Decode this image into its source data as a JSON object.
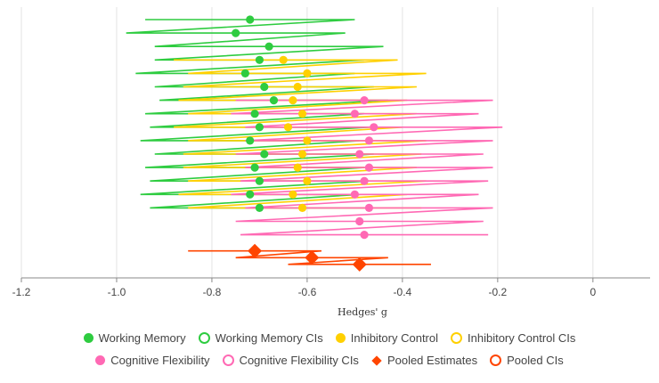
{
  "chart_data": {
    "type": "scatter",
    "xlabel": "Hedges' g",
    "xlim": [
      -1.2,
      0.12
    ],
    "xticks": [
      -1.2,
      -1.0,
      -0.8,
      -0.6,
      -0.4,
      -0.2,
      0
    ],
    "xtick_labels": [
      "-1.2",
      "-1.0",
      "-0.8",
      "-0.6",
      "-0.4",
      "-0.2",
      "0"
    ],
    "grid": true,
    "legend_position": "bottom",
    "series": [
      {
        "name": "Working Memory",
        "ci_name": "Working Memory CIs",
        "color": "#2ecc40",
        "marker": "circle",
        "points": [
          {
            "row": 1,
            "g": -0.72,
            "lo": -0.94,
            "hi": -0.5
          },
          {
            "row": 2,
            "g": -0.75,
            "lo": -0.98,
            "hi": -0.52
          },
          {
            "row": 3,
            "g": -0.68,
            "lo": -0.92,
            "hi": -0.44
          },
          {
            "row": 4,
            "g": -0.7,
            "lo": -0.92,
            "hi": -0.48
          },
          {
            "row": 5,
            "g": -0.73,
            "lo": -0.96,
            "hi": -0.5
          },
          {
            "row": 6,
            "g": -0.69,
            "lo": -0.92,
            "hi": -0.46
          },
          {
            "row": 7,
            "g": -0.67,
            "lo": -0.91,
            "hi": -0.43
          },
          {
            "row": 8,
            "g": -0.71,
            "lo": -0.94,
            "hi": -0.48
          },
          {
            "row": 9,
            "g": -0.7,
            "lo": -0.93,
            "hi": -0.47
          },
          {
            "row": 10,
            "g": -0.72,
            "lo": -0.95,
            "hi": -0.49
          },
          {
            "row": 11,
            "g": -0.69,
            "lo": -0.92,
            "hi": -0.46
          },
          {
            "row": 12,
            "g": -0.71,
            "lo": -0.94,
            "hi": -0.48
          },
          {
            "row": 13,
            "g": -0.7,
            "lo": -0.93,
            "hi": -0.47
          },
          {
            "row": 14,
            "g": -0.72,
            "lo": -0.95,
            "hi": -0.49
          },
          {
            "row": 15,
            "g": -0.7,
            "lo": -0.93,
            "hi": -0.47
          }
        ]
      },
      {
        "name": "Inhibitory Control",
        "ci_name": "Inhibitory Control CIs",
        "color": "#ffd000",
        "marker": "circle",
        "points": [
          {
            "row": 4,
            "g": -0.65,
            "lo": -0.88,
            "hi": -0.41
          },
          {
            "row": 5,
            "g": -0.6,
            "lo": -0.85,
            "hi": -0.35
          },
          {
            "row": 6,
            "g": -0.62,
            "lo": -0.86,
            "hi": -0.37
          },
          {
            "row": 7,
            "g": -0.63,
            "lo": -0.87,
            "hi": -0.39
          },
          {
            "row": 8,
            "g": -0.61,
            "lo": -0.85,
            "hi": -0.37
          },
          {
            "row": 9,
            "g": -0.64,
            "lo": -0.88,
            "hi": -0.4
          },
          {
            "row": 10,
            "g": -0.6,
            "lo": -0.85,
            "hi": -0.35
          },
          {
            "row": 11,
            "g": -0.61,
            "lo": -0.86,
            "hi": -0.36
          },
          {
            "row": 12,
            "g": -0.62,
            "lo": -0.86,
            "hi": -0.37
          },
          {
            "row": 13,
            "g": -0.6,
            "lo": -0.85,
            "hi": -0.35
          },
          {
            "row": 14,
            "g": -0.63,
            "lo": -0.87,
            "hi": -0.39
          },
          {
            "row": 15,
            "g": -0.61,
            "lo": -0.85,
            "hi": -0.36
          }
        ]
      },
      {
        "name": "Cognitive Flexibility",
        "ci_name": "Cognitive Flexibility CIs",
        "color": "#ff69b4",
        "marker": "circle",
        "points": [
          {
            "row": 7,
            "g": -0.48,
            "lo": -0.75,
            "hi": -0.21
          },
          {
            "row": 8,
            "g": -0.5,
            "lo": -0.76,
            "hi": -0.24
          },
          {
            "row": 9,
            "g": -0.46,
            "lo": -0.73,
            "hi": -0.19
          },
          {
            "row": 10,
            "g": -0.47,
            "lo": -0.73,
            "hi": -0.21
          },
          {
            "row": 11,
            "g": -0.49,
            "lo": -0.75,
            "hi": -0.23
          },
          {
            "row": 12,
            "g": -0.47,
            "lo": -0.73,
            "hi": -0.21
          },
          {
            "row": 13,
            "g": -0.48,
            "lo": -0.74,
            "hi": -0.22
          },
          {
            "row": 14,
            "g": -0.5,
            "lo": -0.76,
            "hi": -0.24
          },
          {
            "row": 15,
            "g": -0.47,
            "lo": -0.73,
            "hi": -0.21
          },
          {
            "row": 16,
            "g": -0.49,
            "lo": -0.75,
            "hi": -0.23
          },
          {
            "row": 17,
            "g": -0.48,
            "lo": -0.74,
            "hi": -0.22
          }
        ]
      },
      {
        "name": "Pooled Estimates",
        "ci_name": "Pooled CIs",
        "color": "#ff4500",
        "marker": "diamond",
        "points": [
          {
            "row": 18.2,
            "g": -0.71,
            "lo": -0.85,
            "hi": -0.57
          },
          {
            "row": 18.7,
            "g": -0.59,
            "lo": -0.75,
            "hi": -0.43
          },
          {
            "row": 19.2,
            "g": -0.49,
            "lo": -0.64,
            "hi": -0.34
          }
        ]
      }
    ]
  }
}
